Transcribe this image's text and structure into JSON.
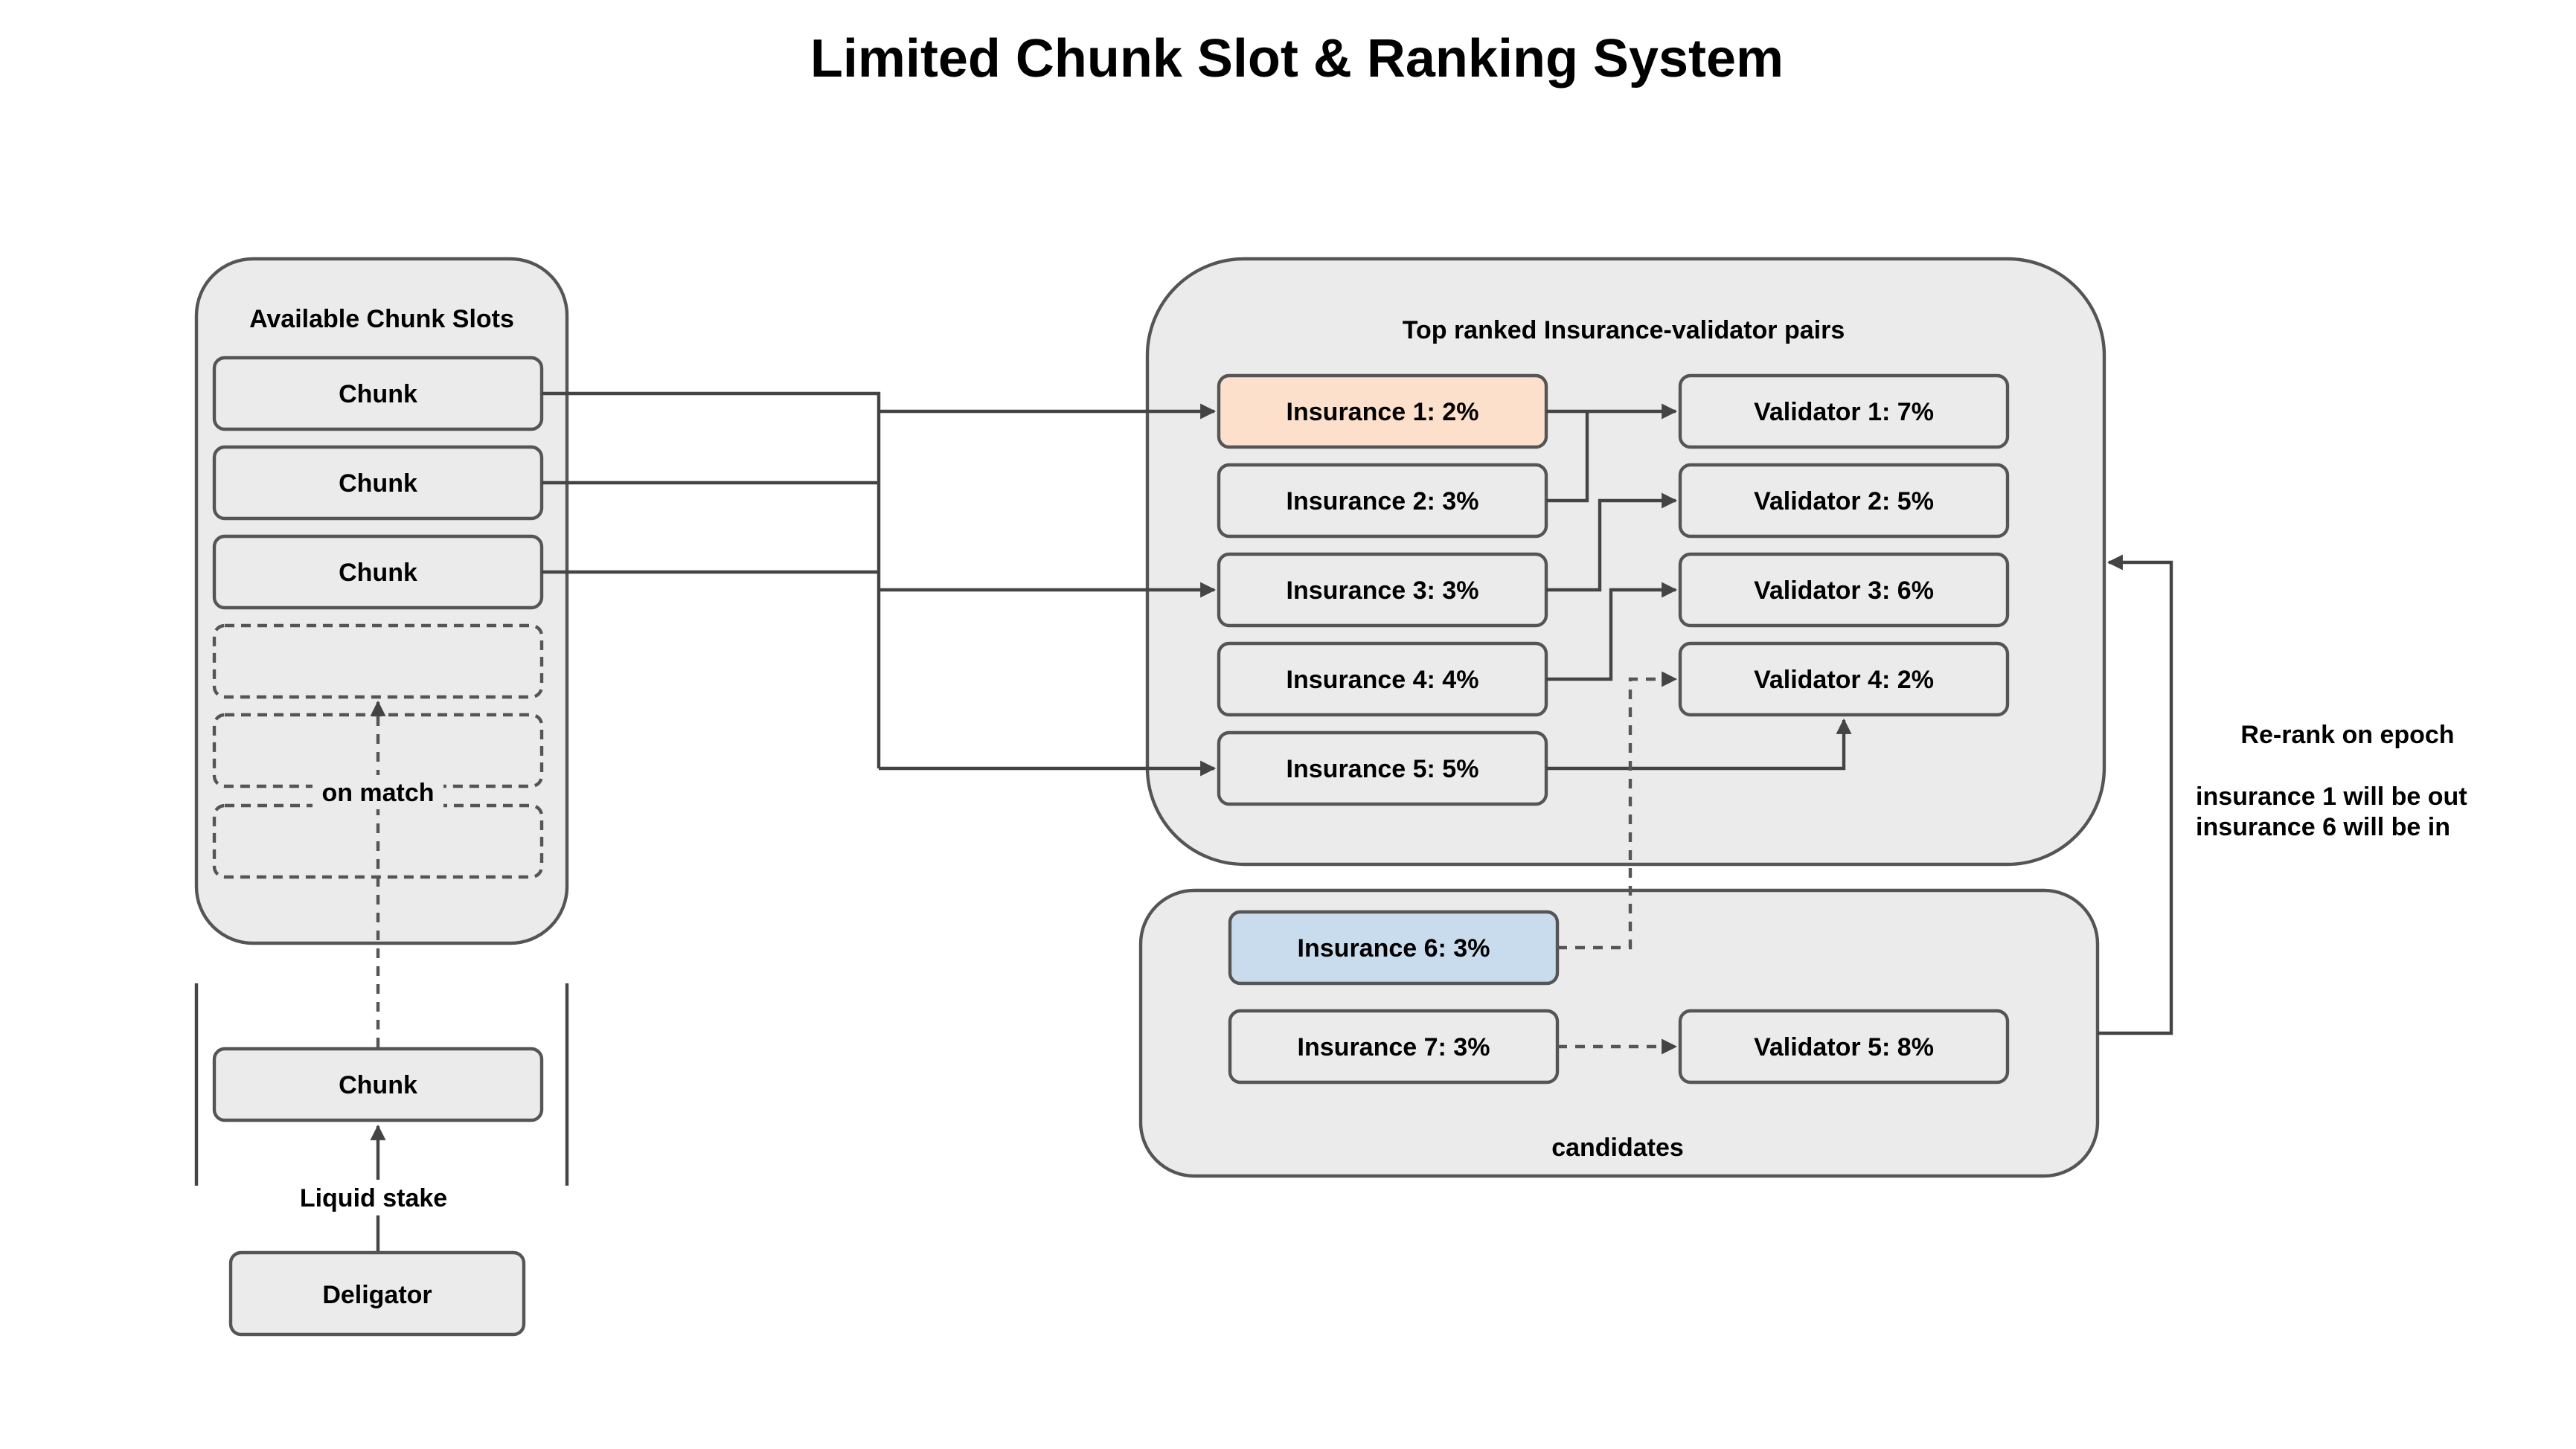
{
  "title": "Limited Chunk Slot & Ranking System",
  "slots": {
    "label": "Available Chunk Slots",
    "chunks": [
      "Chunk",
      "Chunk",
      "Chunk"
    ],
    "on_match": "on match"
  },
  "staking": {
    "chunk": "Chunk",
    "liquid_stake": "Liquid stake",
    "delegator": "Deligator"
  },
  "top_ranked": {
    "label": "Top ranked Insurance-validator pairs",
    "insurances": [
      "Insurance 1: 2%",
      "Insurance 2: 3%",
      "Insurance 3: 3%",
      "Insurance 4: 4%",
      "Insurance 5: 5%"
    ],
    "validators": [
      "Validator 1: 7%",
      "Validator 2: 5%",
      "Validator 3: 6%",
      "Validator 4: 2%"
    ]
  },
  "candidates": {
    "label": "candidates",
    "insurances": [
      "Insurance 6: 3%",
      "Insurance 7: 3%"
    ],
    "validators": [
      "Validator 5: 8%"
    ]
  },
  "rerank": {
    "title": "Re-rank on epoch",
    "line1": "insurance 1 will be out",
    "line2": "insurance 6 will be in"
  },
  "colors": {
    "insurance_out": "#fce0cb",
    "insurance_in": "#c9dcee",
    "box_fill": "#ebebeb",
    "stroke": "#555555"
  }
}
